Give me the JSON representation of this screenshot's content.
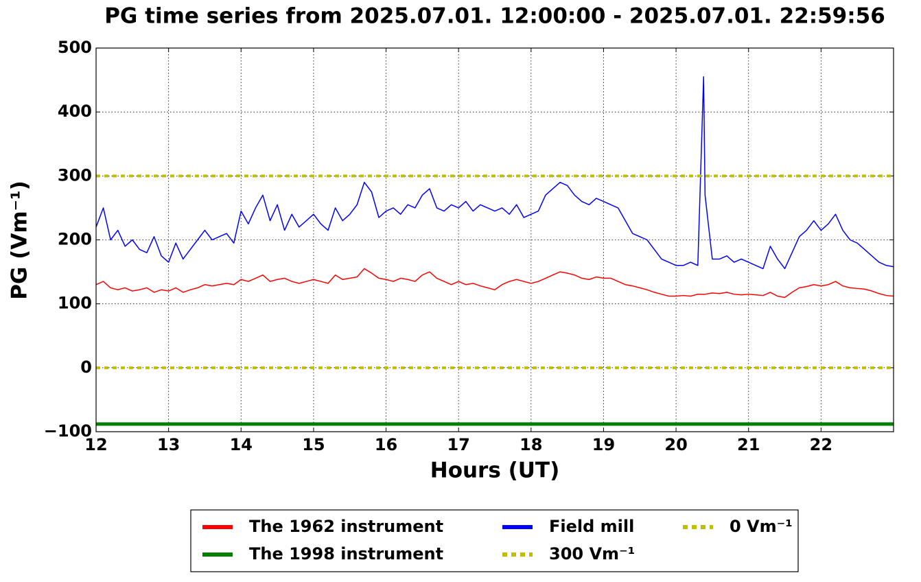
{
  "chart_data": {
    "type": "line",
    "title": "PG time series from 2025.07.01. 12:00:00 - 2025.07.01. 22:59:56",
    "xlabel": "Hours (UT)",
    "ylabel": "PG (Vm⁻¹)",
    "xlim": [
      12,
      23
    ],
    "xticks": [
      12,
      13,
      14,
      15,
      16,
      17,
      18,
      19,
      20,
      21,
      22
    ],
    "ylim": [
      -100,
      500
    ],
    "yticks": [
      {
        "value": -100,
        "label": "−100"
      },
      0,
      100,
      200,
      300,
      400,
      500
    ],
    "grid": true,
    "legend": "below",
    "x": [
      12.0,
      12.1,
      12.2,
      12.3,
      12.4,
      12.5,
      12.6,
      12.7,
      12.8,
      12.9,
      13.0,
      13.1,
      13.2,
      13.3,
      13.4,
      13.5,
      13.6,
      13.7,
      13.8,
      13.9,
      14.0,
      14.1,
      14.2,
      14.3,
      14.4,
      14.5,
      14.6,
      14.7,
      14.8,
      14.9,
      15.0,
      15.1,
      15.2,
      15.3,
      15.4,
      15.5,
      15.6,
      15.7,
      15.8,
      15.9,
      16.0,
      16.1,
      16.2,
      16.3,
      16.4,
      16.5,
      16.6,
      16.7,
      16.8,
      16.9,
      17.0,
      17.1,
      17.2,
      17.3,
      17.4,
      17.5,
      17.6,
      17.7,
      17.8,
      17.9,
      18.0,
      18.1,
      18.2,
      18.3,
      18.4,
      18.5,
      18.6,
      18.7,
      18.8,
      18.9,
      19.0,
      19.1,
      19.2,
      19.3,
      19.4,
      19.5,
      19.6,
      19.7,
      19.8,
      19.9,
      20.0,
      20.1,
      20.2,
      20.3,
      20.38,
      20.4,
      20.5,
      20.6,
      20.7,
      20.8,
      20.9,
      21.0,
      21.1,
      21.2,
      21.3,
      21.4,
      21.5,
      21.6,
      21.7,
      21.8,
      21.9,
      22.0,
      22.1,
      22.2,
      22.3,
      22.4,
      22.5,
      22.6,
      22.7,
      22.8,
      22.9,
      23.0
    ],
    "series": [
      {
        "name": "The 1962 instrument",
        "color": "#ff0000",
        "width": 1.5,
        "values": [
          130,
          135,
          125,
          122,
          125,
          120,
          122,
          125,
          118,
          122,
          120,
          125,
          118,
          122,
          125,
          130,
          128,
          130,
          132,
          130,
          138,
          135,
          140,
          145,
          135,
          138,
          140,
          135,
          132,
          135,
          138,
          135,
          132,
          145,
          138,
          140,
          142,
          155,
          148,
          140,
          138,
          135,
          140,
          138,
          135,
          145,
          150,
          140,
          135,
          130,
          135,
          130,
          132,
          128,
          125,
          122,
          130,
          135,
          138,
          135,
          132,
          135,
          140,
          145,
          150,
          148,
          145,
          140,
          138,
          142,
          140,
          140,
          135,
          130,
          128,
          125,
          122,
          118,
          115,
          112,
          112,
          113,
          112,
          115,
          115,
          115,
          117,
          116,
          118,
          115,
          114,
          115,
          114,
          113,
          118,
          112,
          110,
          118,
          125,
          127,
          130,
          128,
          130,
          135,
          128,
          125,
          124,
          123,
          120,
          116,
          113,
          112
        ]
      },
      {
        "name": "The 1998 instrument",
        "color": "#008000",
        "width": 5,
        "x": [
          12,
          23
        ],
        "values": [
          -88,
          -88
        ]
      },
      {
        "name": "Field mill",
        "color": "#0000ff",
        "width": 1.5,
        "values": [
          220,
          250,
          200,
          215,
          190,
          200,
          185,
          180,
          205,
          175,
          165,
          195,
          170,
          185,
          200,
          215,
          200,
          205,
          210,
          195,
          245,
          225,
          250,
          270,
          230,
          255,
          215,
          240,
          220,
          230,
          240,
          225,
          215,
          250,
          230,
          240,
          255,
          290,
          275,
          235,
          245,
          250,
          240,
          255,
          250,
          270,
          280,
          250,
          245,
          255,
          250,
          260,
          245,
          255,
          250,
          245,
          250,
          240,
          255,
          235,
          240,
          245,
          270,
          280,
          290,
          285,
          270,
          260,
          255,
          265,
          260,
          255,
          250,
          230,
          210,
          205,
          200,
          185,
          170,
          165,
          160,
          160,
          165,
          160,
          455,
          270,
          170,
          170,
          175,
          165,
          170,
          165,
          160,
          155,
          190,
          170,
          155,
          180,
          205,
          215,
          230,
          215,
          225,
          240,
          215,
          200,
          195,
          185,
          175,
          165,
          160,
          158
        ]
      },
      {
        "name": "300 Vm⁻¹",
        "color": "#bfbf00",
        "width": 4,
        "dashed": true,
        "x": [
          12,
          23
        ],
        "values": [
          300,
          300
        ]
      },
      {
        "name": "0 Vm⁻¹",
        "color": "#bfbf00",
        "width": 4,
        "dashed": true,
        "x": [
          12,
          23
        ],
        "values": [
          0,
          0
        ]
      }
    ]
  }
}
